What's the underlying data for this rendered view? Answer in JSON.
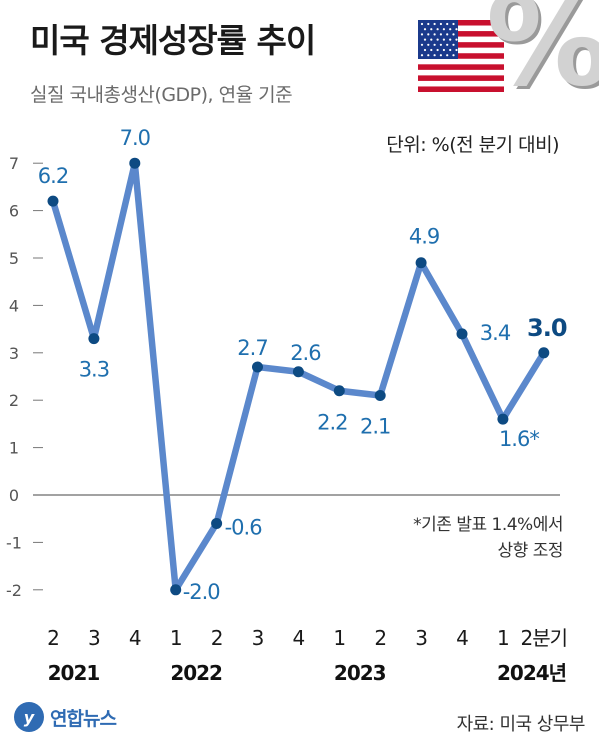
{
  "title": "미국 경제성장률 추이",
  "subtitle": "실질 국내총생산(GDP), 연율 기준",
  "unit_label": "단위: %(전 분기 대비)",
  "note_line1": "*기존 발표 1.4%에서",
  "note_line2": "상향 조정",
  "logo_text": "연합뉴스",
  "logo_mark": "y",
  "source": "자료: 미국 상무부",
  "percent_symbol": "%",
  "colors": {
    "line": "#5b88cc",
    "point": "#0d4a82",
    "label": "#1f6fae",
    "axis": "#555555",
    "flag_red": "#c8102e",
    "flag_blue": "#1b3a8c"
  },
  "chart_data": {
    "type": "line",
    "categories": [
      "2",
      "3",
      "4",
      "1",
      "2",
      "3",
      "4",
      "1",
      "2",
      "3",
      "4",
      "1",
      "2분기"
    ],
    "year_labels": [
      "2021",
      "2022",
      "2023",
      "2024년"
    ],
    "values": [
      6.2,
      3.3,
      7.0,
      -2.0,
      -0.6,
      2.7,
      2.6,
      2.2,
      2.1,
      4.9,
      3.4,
      1.6,
      3.0
    ],
    "value_labels": [
      "6.2",
      "3.3",
      "7.0",
      "-2.0",
      "-0.6",
      "2.7",
      "2.6",
      "2.2",
      "2.1",
      "4.9",
      "3.4",
      "1.6*",
      "3.0"
    ],
    "yticks": [
      "7",
      "6",
      "5",
      "4",
      "3",
      "2",
      "1",
      "0",
      "-1",
      "-2"
    ],
    "ylim": [
      -2.3,
      7.3
    ],
    "xlabel": "",
    "ylabel": "",
    "grid": false
  }
}
